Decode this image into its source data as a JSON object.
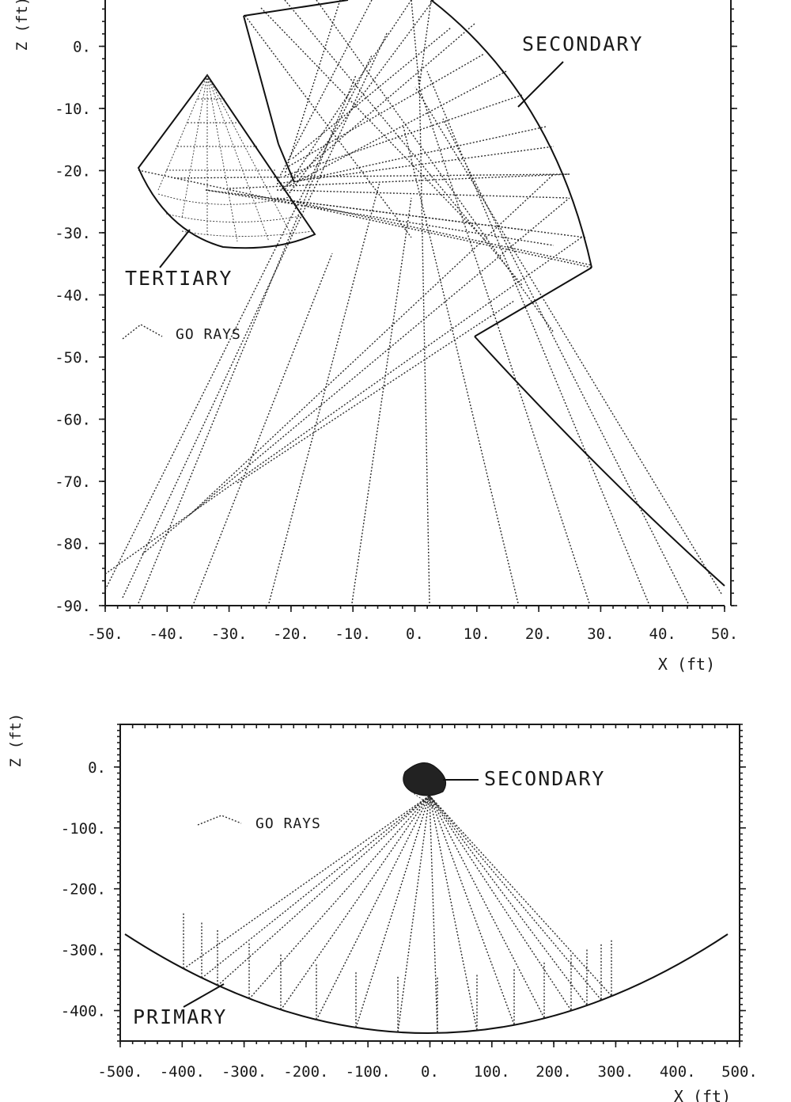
{
  "diagram1": {
    "labels": {
      "secondary": "SECONDARY",
      "tertiary": "TERTIARY",
      "go_rays": "GO RAYS",
      "xlabel": "X (ft)",
      "ylabel": "Z (ft)"
    },
    "x_ticks": [
      "-50.",
      "-40.",
      "-30.",
      "-20.",
      "-10.",
      "0.",
      "10.",
      "20.",
      "30.",
      "40.",
      "50."
    ],
    "y_ticks": [
      "0.",
      "-10.",
      "-20.",
      "-30.",
      "-40.",
      "-50.",
      "-60.",
      "-70.",
      "-80.",
      "-90."
    ],
    "x_range": [
      -50,
      50
    ],
    "y_range": [
      -90,
      10
    ]
  },
  "diagram2": {
    "labels": {
      "secondary": "SECONDARY",
      "primary": "PRIMARY",
      "go_rays": "GO RAYS",
      "xlabel": "X (ft)",
      "ylabel": "Z (ft)"
    },
    "x_ticks": [
      "-500.",
      "-400.",
      "-300.",
      "-200.",
      "-100.",
      "0.",
      "100.",
      "200.",
      "300.",
      "400.",
      "500."
    ],
    "y_ticks": [
      "0.",
      "-100.",
      "-200.",
      "-300.",
      "-400."
    ],
    "x_range": [
      -500,
      500
    ],
    "y_range": [
      -450,
      70
    ]
  }
}
